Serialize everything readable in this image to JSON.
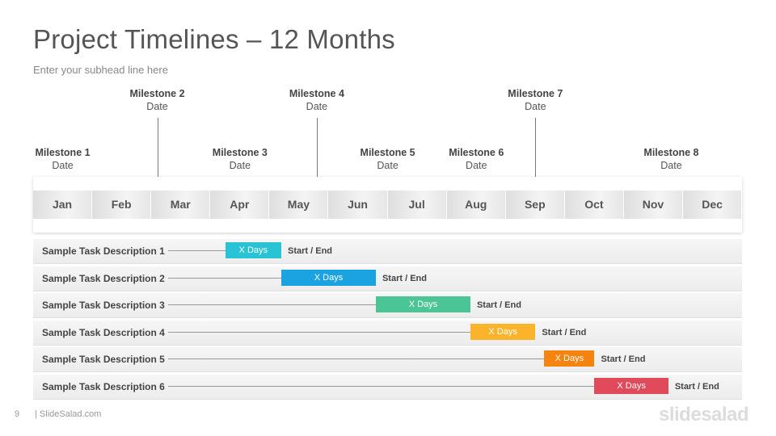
{
  "header": {
    "title": "Project Timelines – 12 Months",
    "subtitle": "Enter your subhead  line here"
  },
  "months": [
    "Jan",
    "Feb",
    "Mar",
    "Apr",
    "May",
    "Jun",
    "Jul",
    "Aug",
    "Sep",
    "Oct",
    "Nov",
    "Dec"
  ],
  "milestones": [
    {
      "name": "Milestone  1",
      "date": "Date",
      "color": "#29b6d6",
      "row": "low",
      "month_pos": 0.5
    },
    {
      "name": "Milestone  2",
      "date": "Date",
      "color": "#1aa3e0",
      "row": "high",
      "month_pos": 2.1
    },
    {
      "name": "Milestone  3",
      "date": "Date",
      "color": "#4cc596",
      "row": "low",
      "month_pos": 3.5
    },
    {
      "name": "Milestone  4",
      "date": "Date",
      "color": "#fbb42a",
      "row": "high",
      "month_pos": 4.8
    },
    {
      "name": "Milestone  5",
      "date": "Date",
      "color": "#f5830f",
      "row": "low",
      "month_pos": 6.0
    },
    {
      "name": "Milestone  6",
      "date": "Date",
      "color": "#e04a5a",
      "row": "low",
      "month_pos": 7.5
    },
    {
      "name": "Milestone  7",
      "date": "Date",
      "color": "#29b6d6",
      "row": "high",
      "month_pos": 8.5
    },
    {
      "name": "Milestone  8",
      "date": "Date",
      "color": "#1aa3e0",
      "row": "low",
      "month_pos": 10.8
    }
  ],
  "tasks": [
    {
      "label": "Sample Task Description 1",
      "bar_label": "X Days",
      "end_label": "Start / End",
      "start": 3.25,
      "end": 4.2,
      "color": "#29c3d6"
    },
    {
      "label": "Sample Task Description 2",
      "bar_label": "X Days",
      "end_label": "Start / End",
      "start": 4.2,
      "end": 5.8,
      "color": "#1aa3e0"
    },
    {
      "label": "Sample Task Description 3",
      "bar_label": "X Days",
      "end_label": "Start / End",
      "start": 5.8,
      "end": 7.4,
      "color": "#4cc596"
    },
    {
      "label": "Sample Task Description 4",
      "bar_label": "X Days",
      "end_label": "Start / End",
      "start": 7.4,
      "end": 8.5,
      "color": "#fbb42a"
    },
    {
      "label": "Sample Task Description 5",
      "bar_label": "X Days",
      "end_label": "Start / End",
      "start": 8.65,
      "end": 9.5,
      "color": "#f5830f"
    },
    {
      "label": "Sample Task Description 6",
      "bar_label": "X Days",
      "end_label": "Start / End",
      "start": 9.5,
      "end": 10.75,
      "color": "#e04a5a"
    }
  ],
  "footer": {
    "page_number": "9",
    "site": "| SlideSalad.com",
    "brand": "slidesalad"
  }
}
